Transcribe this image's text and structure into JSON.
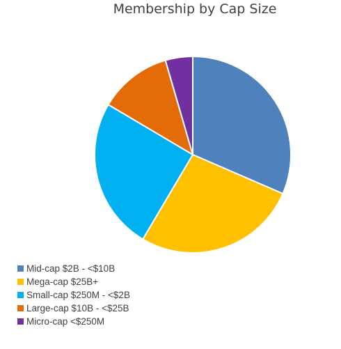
{
  "chart_data": {
    "type": "pie",
    "title": "Membership by Cap Size",
    "categories": [
      "Mid-cap $2B - <$10B",
      "Mega-cap $25B+",
      "Small-cap $250M - <$2B",
      "Large-cap $10B - <$25B",
      "Micro-cap <$250M"
    ],
    "values": [
      31.5,
      27.0,
      25.0,
      12.0,
      4.5
    ],
    "colors": [
      "#4F81BD",
      "#FFC000",
      "#00B0F0",
      "#E36C09",
      "#7030A0"
    ],
    "start_angle": "12 o'clock",
    "direction": "clockwise",
    "legend_position": "bottom-left"
  }
}
